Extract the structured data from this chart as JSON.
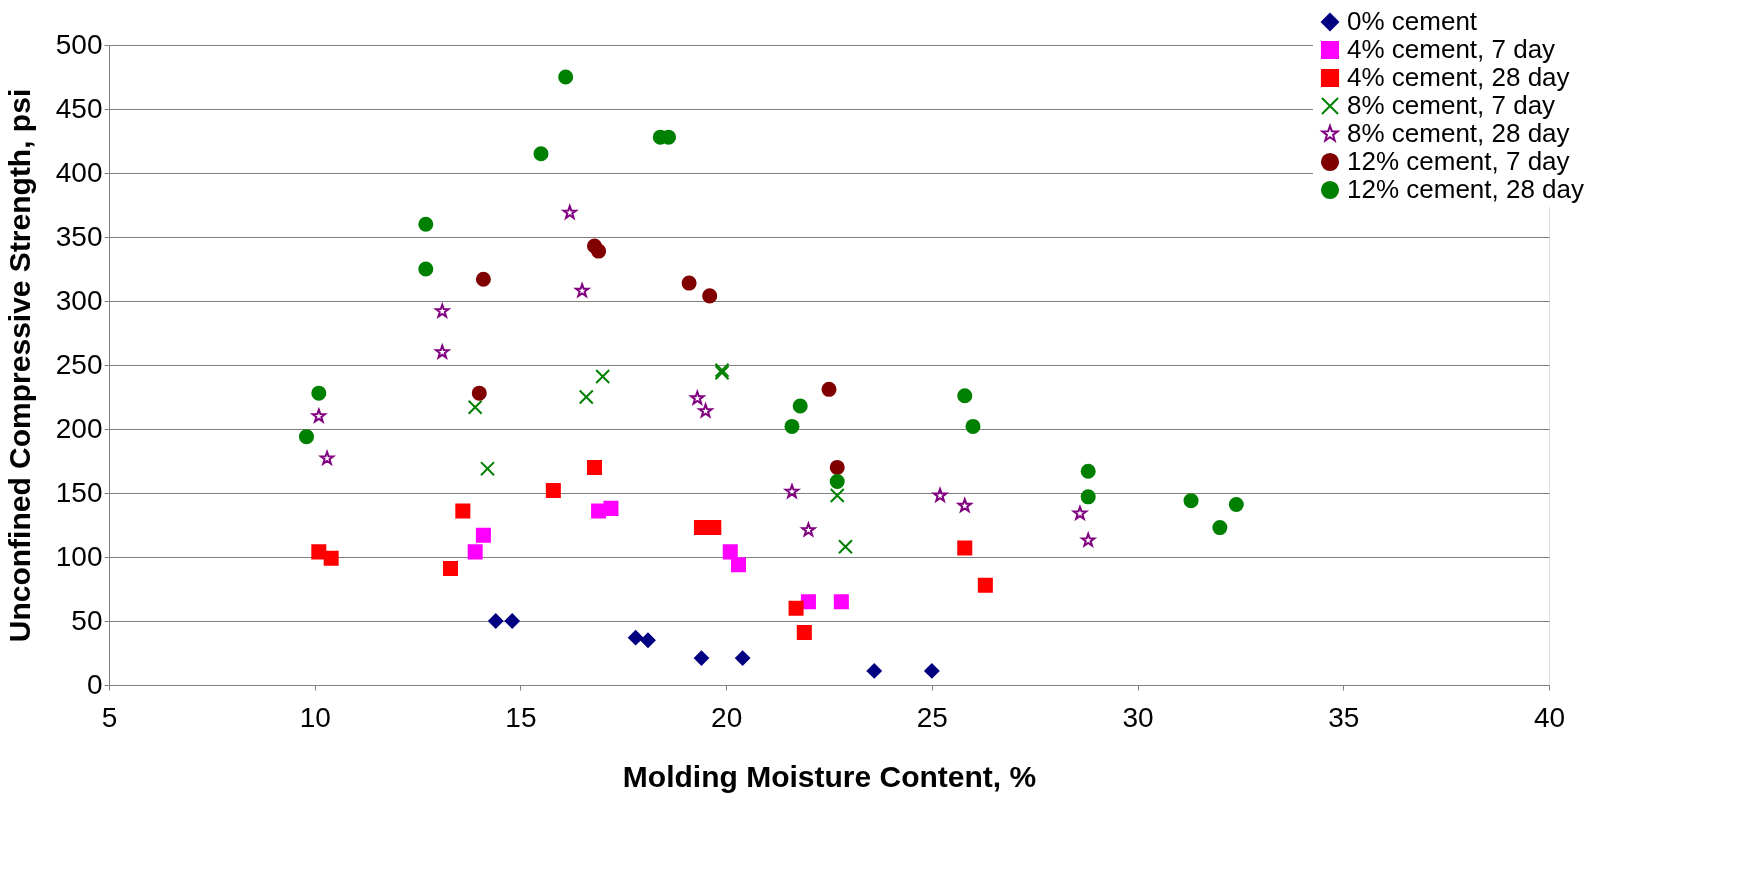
{
  "chart_data": {
    "type": "scatter",
    "xlabel": "Molding Moisture Content, %",
    "ylabel": "Unconfined Compressive Strength, psi",
    "xlim": [
      5,
      40
    ],
    "xticks": [
      5,
      10,
      15,
      20,
      25,
      30,
      35,
      40
    ],
    "ylim": [
      0,
      500
    ],
    "yticks": [
      0,
      50,
      100,
      150,
      200,
      250,
      300,
      350,
      400,
      450,
      500
    ],
    "grid": "y",
    "legend": "top right",
    "series": [
      {
        "name": "0% cement",
        "color": "#000080",
        "marker": "diamond",
        "x": [
          14.4,
          14.8,
          17.8,
          18.1,
          19.4,
          20.4,
          23.6,
          25.0
        ],
        "values": [
          50,
          50,
          37,
          35,
          21,
          21,
          11,
          11
        ]
      },
      {
        "name": "4% cement, 7 day",
        "color": "#ff00ff",
        "marker": "square",
        "x": [
          13.9,
          14.1,
          16.9,
          17.2,
          20.1,
          20.3,
          22.0,
          22.8
        ],
        "values": [
          104,
          117,
          136,
          138,
          104,
          94,
          65,
          65
        ]
      },
      {
        "name": "4% cement, 28 day",
        "color": "#ff0000",
        "marker": "square",
        "x": [
          10.1,
          10.4,
          13.3,
          13.6,
          15.8,
          16.8,
          19.4,
          19.7,
          21.7,
          21.9,
          25.8,
          26.3
        ],
        "values": [
          104,
          99,
          91,
          136,
          152,
          170,
          123,
          123,
          60,
          41,
          107,
          78
        ]
      },
      {
        "name": "8% cement, 7 day",
        "color": "#008000",
        "marker": "cross",
        "x": [
          13.9,
          14.2,
          16.6,
          17.0,
          19.9,
          19.9,
          22.7,
          22.9
        ],
        "values": [
          217,
          169,
          225,
          241,
          244,
          246,
          148,
          108
        ]
      },
      {
        "name": "8% cement, 28 day",
        "color": "#800080",
        "marker": "star",
        "x": [
          10.1,
          10.3,
          13.1,
          13.1,
          16.2,
          16.5,
          19.3,
          19.5,
          21.6,
          22.0,
          25.2,
          25.8,
          28.6,
          28.8
        ],
        "values": [
          210,
          177,
          292,
          260,
          369,
          308,
          224,
          214,
          151,
          121,
          148,
          140,
          134,
          113
        ]
      },
      {
        "name": "12% cement, 7 day",
        "color": "#800000",
        "marker": "circle",
        "x": [
          14.0,
          14.1,
          16.8,
          16.9,
          19.1,
          19.6,
          22.5,
          22.7
        ],
        "values": [
          228,
          317,
          343,
          339,
          314,
          304,
          231,
          170
        ]
      },
      {
        "name": "12% cement, 28 day",
        "color": "#008000",
        "marker": "circle",
        "x": [
          9.8,
          10.1,
          12.7,
          12.7,
          15.5,
          16.1,
          18.4,
          18.6,
          21.6,
          21.8,
          22.7,
          25.8,
          26.0,
          28.8,
          28.8,
          31.3,
          32.0,
          32.4
        ],
        "values": [
          194,
          228,
          360,
          325,
          415,
          475,
          428,
          428,
          202,
          218,
          159,
          226,
          202,
          167,
          147,
          144,
          123,
          141
        ]
      }
    ]
  }
}
